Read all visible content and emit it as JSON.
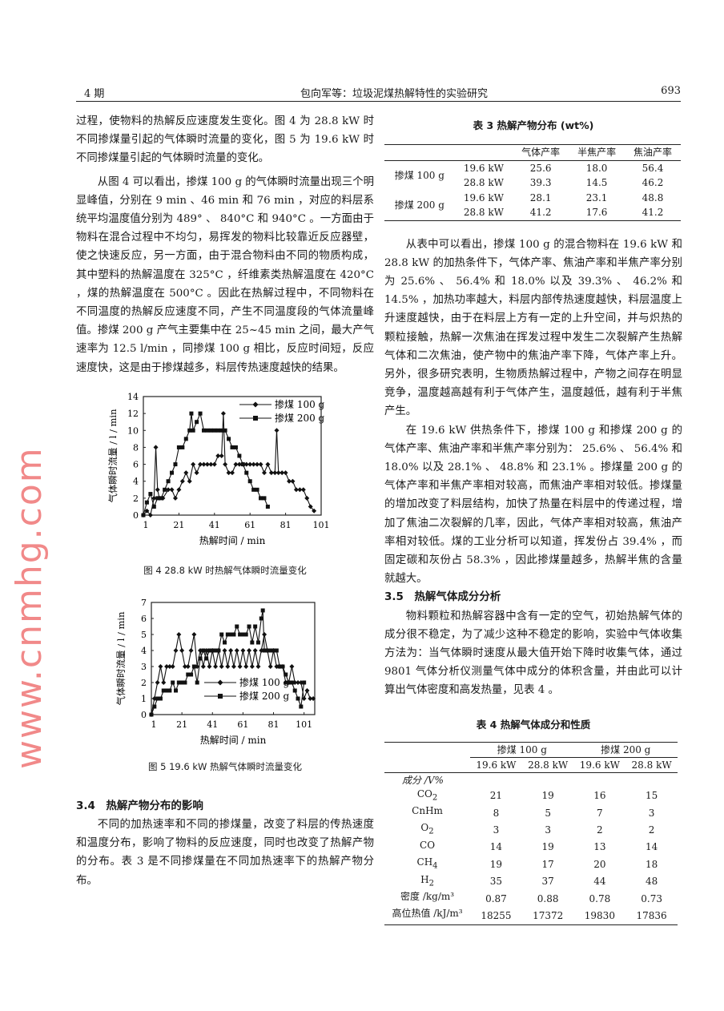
{
  "header": {
    "issue": "4 期",
    "running_title": "包向军等：垃圾泥煤热解特性的实验研究",
    "page_number": "693"
  },
  "left": {
    "p1": "过程，使物料的热解反应速度发生变化。图 4 为 28.8 kW 时不同掺煤量引起的气体瞬时流量的变化，图 5 为 19.6 kW 时不同掺煤量引起的气体瞬时流量的变化。",
    "p2": "从图 4 可以看出，掺煤 100 g 的气体瞬时流量出现三个明显峰值，分别在 9 min 、46 min 和 76 min ，对应的料层系统平均温度值分别为 489° 、 840°C 和 940°C 。一方面由于物料在混合过程中不均匀，易挥发的物料比较靠近反应器壁，使之快速反应，另一方面，由于混合物料由不同的物质构成，其中塑料的热解温度在 325°C ，纤维素类热解温度在 420°C ，煤的热解温度在 500°C 。因此在热解过程中，不同物料在不同温度的热解反应速度不同，产生不同温度段的气体流量峰值。掺煤 200 g 产气主要集中在 25~45 min 之间，最大产气速率为 12.5 l/min ，同掺煤 100 g 相比，反应时间短，反应速度快，这是由于掺煤越多，料层传热速度越快的结果。",
    "fig4_caption": "图 4  28.8 kW 时热解气体瞬时流量变化",
    "fig5_caption": "图 5  19.6 kW 热解气体瞬时流量变化",
    "sec34": "3.4　热解产物分布的影响",
    "p3": "不同的加热速率和不同的掺煤量，改变了料层的传热速度和温度分布，影响了物料的反应速度，同时也改变了热解产物的分布。表 3 是不同掺煤量在不同加热速率下的热解产物分布。"
  },
  "right": {
    "p1": "从表中可以看出，掺煤 100 g 的混合物料在 19.6 kW 和 28.8 kW 的加热条件下，气体产率、焦油产率和半焦产率分别为 25.6% 、 56.4% 和 18.0% 以及 39.3% 、 46.2% 和 14.5% ，加热功率越大，料层内部传热速度越快，料层温度上升速度越快，由于在料层上方有一定的上升空间，并与炽热的颗粒接触，热解一次焦油在挥发过程中发生二次裂解产生热解气体和二次焦油，使产物中的焦油产率下降，气体产率上升。另外，很多研究表明，生物质热解过程中，产物之间存在明显竞争，温度越高越有利于气体产生，温度越低，越有利于半焦产生。",
    "p2": "在 19.6 kW 供热条件下，掺煤 100 g 和掺煤 200 g 的气体产率、焦油产率和半焦产率分别为： 25.6% 、 56.4% 和 18.0% 以及 28.1% 、 48.8% 和 23.1% 。掺煤量 200 g 的气体产率和半焦产率相对较高，而焦油产率相对较低。掺煤量的增加改变了料层结构，加快了热量在料层中的传递过程，增加了焦油二次裂解的几率，因此，气体产率相对较高，焦油产率相对较低。煤的工业分析可以知道，挥发份占 39.4% ，而固定碳和灰份占 58.3% ，因此掺煤量越多，热解半焦的含量就越大。",
    "sec35": "3.5　热解气体成分分析",
    "p3": "物料颗粒和热解容器中含有一定的空气，初始热解气体的成分很不稳定，为了减少这种不稳定的影响，实验中气体收集方法为：当气体瞬时速度从最大值开始下降时收集气体，通过 9801 气体分析仪测量气体中成分的体积含量，并由此可以计算出气体密度和高发热量，见表 4 。"
  },
  "table3": {
    "title": "表 3  热解产物分布 (wt%)",
    "headers": [
      "气体产率",
      "半焦产率",
      "焦油产率"
    ],
    "rows": [
      {
        "group": "掺煤 100 g",
        "power": "19.6 kW",
        "values": [
          "25.6",
          "18.0",
          "56.4"
        ]
      },
      {
        "group": "",
        "power": "28.8 kW",
        "values": [
          "39.3",
          "14.5",
          "46.2"
        ]
      },
      {
        "group": "掺煤 200 g",
        "power": "19.6 kW",
        "values": [
          "28.1",
          "23.1",
          "48.8"
        ]
      },
      {
        "group": "",
        "power": "28.8 kW",
        "values": [
          "41.2",
          "17.6",
          "41.2"
        ]
      }
    ]
  },
  "table4": {
    "title": "表 4  热解气体成分和性质",
    "groups": [
      "掺煤 100 g",
      "掺煤 200 g"
    ],
    "subheaders": [
      "19.6 kW",
      "28.8 kW",
      "19.6 kW",
      "28.8 kW"
    ],
    "section_label": "成分 /V%",
    "rows": [
      {
        "label": "CO",
        "sub": "2",
        "values": [
          "21",
          "19",
          "16",
          "15"
        ]
      },
      {
        "label": "CnHm",
        "sub": "",
        "values": [
          "8",
          "5",
          "7",
          "3"
        ]
      },
      {
        "label": "O",
        "sub": "2",
        "values": [
          "3",
          "3",
          "2",
          "2"
        ]
      },
      {
        "label": "CO",
        "sub": "",
        "values": [
          "14",
          "19",
          "13",
          "14"
        ]
      },
      {
        "label": "CH",
        "sub": "4",
        "values": [
          "19",
          "17",
          "20",
          "18"
        ]
      },
      {
        "label": "H",
        "sub": "2",
        "values": [
          "35",
          "37",
          "44",
          "48"
        ]
      },
      {
        "label": "密度 /kg/m³",
        "sub": "",
        "values": [
          "0.87",
          "0.88",
          "0.78",
          "0.73"
        ]
      },
      {
        "label": "高位热值 /kJ/m³",
        "sub": "",
        "values": [
          "18255",
          "17372",
          "19830",
          "17836"
        ]
      }
    ]
  },
  "watermark": "www.cnmhg.com",
  "chart_data": [
    {
      "type": "line",
      "xlabel": "热解时间 / min",
      "ylabel": "气体瞬时流量 / l / min",
      "xlim": [
        1,
        101
      ],
      "ylim": [
        0,
        14
      ],
      "xticks": [
        "1",
        "21",
        "41",
        "61",
        "81",
        "101"
      ],
      "yticks": [
        "0",
        "2",
        "4",
        "6",
        "8",
        "10",
        "12",
        "14"
      ],
      "legend_position": "top-right",
      "grid": false,
      "series": [
        {
          "name": "掺煤 100 g",
          "marker": "diamond",
          "x": [
            1,
            3,
            5,
            7,
            8,
            9,
            10,
            12,
            15,
            17,
            19,
            21,
            23,
            25,
            27,
            29,
            31,
            33,
            35,
            37,
            39,
            41,
            43,
            45,
            46,
            47,
            49,
            51,
            53,
            55,
            57,
            59,
            61,
            63,
            65,
            67,
            69,
            71,
            73,
            75,
            76,
            77,
            79,
            81,
            83,
            85,
            87,
            89,
            91,
            93,
            95,
            97
          ],
          "y": [
            0,
            0.5,
            0,
            2,
            8,
            3,
            2,
            2,
            3,
            3,
            2,
            3,
            4,
            5,
            4,
            6,
            5,
            6,
            6,
            6,
            6,
            6,
            7,
            7,
            12,
            6,
            5,
            5,
            6,
            6,
            6,
            6,
            6,
            6,
            6,
            6,
            5,
            6,
            5,
            5,
            10,
            5,
            5,
            5,
            4,
            4,
            3,
            3,
            3,
            2,
            1,
            0.5
          ]
        },
        {
          "name": "掺煤 200 g",
          "marker": "square",
          "x": [
            1,
            3,
            5,
            7,
            9,
            11,
            13,
            15,
            17,
            19,
            21,
            23,
            25,
            27,
            28,
            29,
            31,
            33,
            35,
            37,
            39,
            41,
            43,
            45,
            47,
            49,
            51,
            53,
            55,
            57,
            59,
            61,
            63,
            65,
            67,
            69,
            71
          ],
          "y": [
            0,
            1.5,
            2.5,
            1,
            2,
            2,
            3,
            4,
            5,
            6,
            8,
            8,
            9,
            10,
            12,
            10,
            11,
            12,
            10,
            10,
            10,
            10,
            10,
            10,
            10,
            9,
            8,
            8,
            7,
            6,
            5,
            4,
            3,
            3,
            2,
            2,
            1
          ]
        }
      ]
    },
    {
      "type": "line",
      "xlabel": "热解时间 / min",
      "ylabel": "气体瞬时流量 / l / min",
      "xlim": [
        1,
        108
      ],
      "ylim": [
        0,
        7
      ],
      "xticks": [
        "1",
        "21",
        "41",
        "61",
        "81",
        "101"
      ],
      "yticks": [
        "0",
        "1",
        "2",
        "3",
        "4",
        "5",
        "6",
        "7"
      ],
      "legend_position": "center-right",
      "grid": false,
      "series": [
        {
          "name": "掺煤 100 g",
          "marker": "diamond",
          "x": [
            1,
            3,
            5,
            7,
            9,
            11,
            13,
            15,
            17,
            19,
            21,
            23,
            25,
            27,
            29,
            31,
            33,
            35,
            37,
            39,
            41,
            43,
            45,
            47,
            49,
            51,
            53,
            55,
            57,
            59,
            61,
            63,
            65,
            67,
            69,
            71,
            73,
            75,
            77,
            79,
            81,
            83,
            85,
            87,
            89,
            91,
            93,
            95,
            97,
            99,
            101,
            103,
            105,
            107
          ],
          "y": [
            0,
            1,
            2,
            3,
            2,
            3,
            3,
            3,
            4,
            5,
            4,
            3,
            3,
            4,
            5,
            3,
            4,
            3,
            4,
            3,
            4,
            3,
            4,
            3,
            4,
            3,
            4,
            3,
            4,
            3,
            4,
            3,
            4,
            3,
            4,
            3,
            4,
            5,
            4,
            3,
            4,
            3,
            3,
            3,
            2,
            2,
            3,
            2,
            2,
            2,
            1,
            1.5,
            1,
            1
          ]
        },
        {
          "name": "掺煤 200 g",
          "marker": "square",
          "x": [
            1,
            3,
            5,
            7,
            9,
            11,
            13,
            15,
            17,
            19,
            21,
            23,
            25,
            27,
            29,
            31,
            33,
            35,
            37,
            39,
            41,
            43,
            45,
            47,
            49,
            51,
            53,
            55,
            57,
            59,
            61,
            63,
            65,
            67,
            69,
            71,
            73,
            74,
            75,
            77,
            79,
            81,
            83,
            85,
            87,
            89,
            91,
            93,
            95,
            97,
            99,
            101
          ],
          "y": [
            0,
            0.5,
            1,
            1,
            1.5,
            1.5,
            1.5,
            2,
            1.5,
            2,
            2,
            2,
            2.5,
            2.5,
            3,
            2,
            3.5,
            4,
            3.5,
            4,
            4,
            4,
            4,
            5,
            4.5,
            5,
            5,
            5,
            5.5,
            5,
            5,
            5,
            5.5,
            4.5,
            5.5,
            4.5,
            6,
            6.5,
            4,
            4,
            4,
            4,
            4,
            3,
            3,
            2.5,
            2,
            2,
            1.5,
            1,
            0.5,
            2
          ]
        }
      ]
    }
  ]
}
